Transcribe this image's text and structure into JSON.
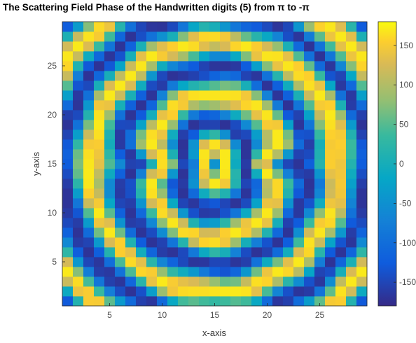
{
  "title": "The Scattering Field Phase of the Handwritten digits (5) from π to -π",
  "chart_data": {
    "type": "heatmap",
    "title": "The Scattering Field Phase of the Handwritten digits (5) from π to -π",
    "xlabel": "x-axis",
    "ylabel": "y-axis",
    "xlim": [
      0.5,
      29.5
    ],
    "ylim": [
      0.5,
      29.5
    ],
    "x_ticks": [
      5,
      10,
      15,
      20,
      25
    ],
    "y_ticks": [
      5,
      10,
      15,
      20,
      25
    ],
    "grid_size": [
      29,
      29
    ],
    "colorbar": {
      "colormap": "parula",
      "range": [
        -180,
        180
      ],
      "ticks": [
        150,
        100,
        50,
        0,
        -50,
        -100,
        -150
      ],
      "tick_labels": [
        "150",
        "100",
        "50",
        "0",
        "-50",
        "-100",
        "-150"
      ]
    },
    "colors": {
      "low": "#352a87",
      "mid_low": "#0f5cdd",
      "mid": "#1ba3c6",
      "mid_high": "#7dba5a",
      "high_mid": "#f0b93e",
      "high": "#f9fb0e"
    },
    "description_of_values": "phase in degrees, z[row][col] row 1 = y 1 (bottom)"
  }
}
